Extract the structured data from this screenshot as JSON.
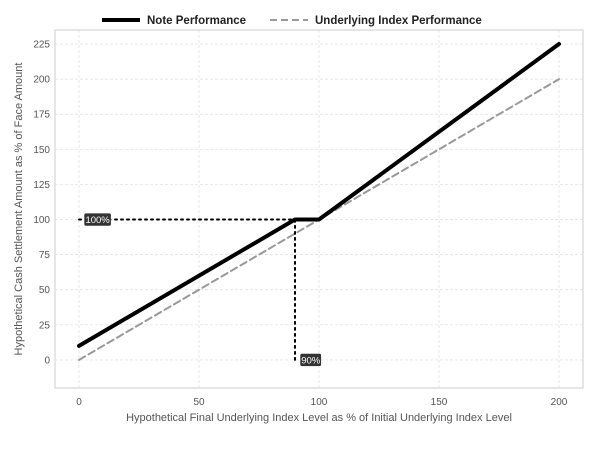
{
  "chart_data": {
    "type": "line",
    "title": "",
    "xlabel": "Hypothetical Final Underlying Index Level as % of Initial Underlying Index Level",
    "ylabel": "Hypothetical Cash Settlement Amount as % of Face Amount",
    "xlim": [
      -10,
      210
    ],
    "ylim": [
      -20,
      235
    ],
    "xticks": [
      0,
      50,
      100,
      150,
      200
    ],
    "yticks": [
      0,
      25,
      50,
      75,
      100,
      125,
      150,
      175,
      200,
      225
    ],
    "grid": true,
    "legend_position": "top",
    "series": [
      {
        "name": "Note Performance",
        "style": "solid",
        "color": "#000000",
        "x": [
          0,
          90,
          100,
          200
        ],
        "y": [
          10,
          100,
          100,
          225
        ]
      },
      {
        "name": "Underlying Index Performance",
        "style": "dashed",
        "color": "#999999",
        "x": [
          0,
          200
        ],
        "y": [
          0,
          200
        ]
      }
    ],
    "annotations": [
      {
        "label": "100%",
        "x": 0,
        "y": 100,
        "line": "horizontal",
        "from_x": 0,
        "to_x": 90
      },
      {
        "label": "90%",
        "x": 90,
        "y": 0,
        "line": "vertical",
        "from_y": 0,
        "to_y": 100
      }
    ]
  }
}
